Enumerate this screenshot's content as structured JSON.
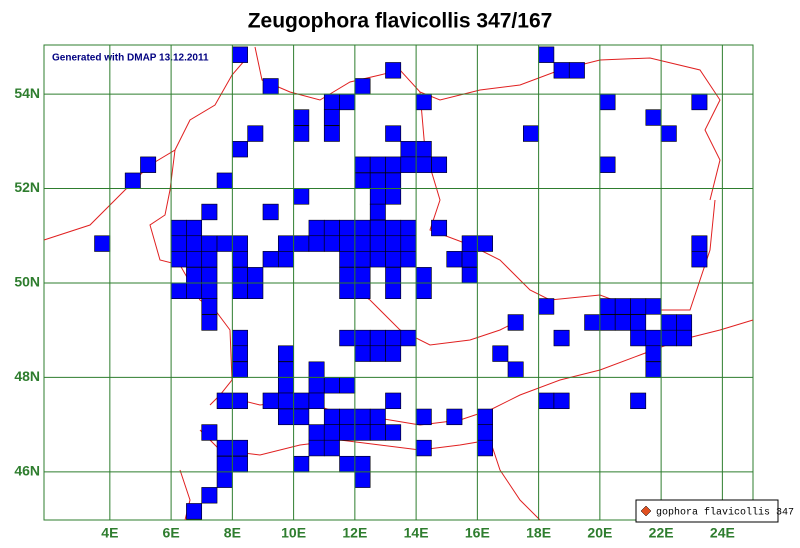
{
  "map": {
    "title": "Zeugophora flavicollis 347/167",
    "note": "Generated with DMAP 13.12.2011",
    "legend": "gophora flavicollis 347",
    "color": "#0000ff",
    "xlim": [
      1.85,
      25
    ],
    "ylim": [
      44.98,
      55.04
    ],
    "cell_size": [
      0.5,
      0.333
    ],
    "xticks": [
      {
        "value": 4,
        "label": "4E"
      },
      {
        "value": 6,
        "label": "6E"
      },
      {
        "value": 8,
        "label": "8E"
      },
      {
        "value": 10,
        "label": "10E"
      },
      {
        "value": 12,
        "label": "12E"
      },
      {
        "value": 14,
        "label": "14E"
      },
      {
        "value": 16,
        "label": "16E"
      },
      {
        "value": 18,
        "label": "18E"
      },
      {
        "value": 20,
        "label": "20E"
      },
      {
        "value": 22,
        "label": "22E"
      },
      {
        "value": 24,
        "label": "24E"
      }
    ],
    "yticks": [
      {
        "value": 54,
        "label": "54N"
      },
      {
        "value": 52,
        "label": "52N"
      },
      {
        "value": 50,
        "label": "50N"
      },
      {
        "value": 48,
        "label": "48N"
      },
      {
        "value": 46,
        "label": "46N"
      }
    ],
    "cells": [
      [
        8,
        55
      ],
      [
        18,
        55
      ],
      [
        13,
        54.67
      ],
      [
        18.5,
        54.67
      ],
      [
        19,
        54.67
      ],
      [
        9,
        54.33
      ],
      [
        12,
        54.33
      ],
      [
        14,
        54
      ],
      [
        20,
        54
      ],
      [
        23,
        54
      ],
      [
        11,
        54
      ],
      [
        11.5,
        54
      ],
      [
        10,
        53.67
      ],
      [
        11,
        53.67
      ],
      [
        21.5,
        53.67
      ],
      [
        8.5,
        53.33
      ],
      [
        10,
        53.33
      ],
      [
        11,
        53.33
      ],
      [
        13,
        53.33
      ],
      [
        17.5,
        53.33
      ],
      [
        22,
        53.33
      ],
      [
        8,
        53
      ],
      [
        13.5,
        53
      ],
      [
        14,
        53
      ],
      [
        14.5,
        52.67
      ],
      [
        12,
        52.67
      ],
      [
        12.5,
        52.67
      ],
      [
        13,
        52.67
      ],
      [
        13.5,
        52.67
      ],
      [
        14,
        52.67
      ],
      [
        20,
        52.67
      ],
      [
        5,
        52.67
      ],
      [
        4.5,
        52.33
      ],
      [
        7.5,
        52.33
      ],
      [
        12,
        52.33
      ],
      [
        12.5,
        52.33
      ],
      [
        13,
        52.33
      ],
      [
        10,
        52
      ],
      [
        12.5,
        52
      ],
      [
        13,
        52
      ],
      [
        7,
        51.67
      ],
      [
        9,
        51.67
      ],
      [
        12.5,
        51.67
      ],
      [
        6,
        51.33
      ],
      [
        6.5,
        51.33
      ],
      [
        10.5,
        51.33
      ],
      [
        11,
        51.33
      ],
      [
        11.5,
        51.33
      ],
      [
        12,
        51.33
      ],
      [
        12.5,
        51.33
      ],
      [
        13,
        51.33
      ],
      [
        13.5,
        51.33
      ],
      [
        14.5,
        51.33
      ],
      [
        6,
        51
      ],
      [
        6.5,
        51
      ],
      [
        7,
        51
      ],
      [
        7.5,
        51
      ],
      [
        8,
        51
      ],
      [
        9.5,
        51
      ],
      [
        10,
        51
      ],
      [
        10.5,
        51
      ],
      [
        11,
        51
      ],
      [
        11.5,
        51
      ],
      [
        12,
        51
      ],
      [
        12.5,
        51
      ],
      [
        13,
        51
      ],
      [
        13.5,
        51
      ],
      [
        15.5,
        51
      ],
      [
        16,
        51
      ],
      [
        23,
        51
      ],
      [
        3.5,
        51
      ],
      [
        6,
        50.67
      ],
      [
        6.5,
        50.67
      ],
      [
        7,
        50.67
      ],
      [
        8,
        50.67
      ],
      [
        9,
        50.67
      ],
      [
        9.5,
        50.67
      ],
      [
        11.5,
        50.67
      ],
      [
        12,
        50.67
      ],
      [
        12.5,
        50.67
      ],
      [
        13,
        50.67
      ],
      [
        13.5,
        50.67
      ],
      [
        15,
        50.67
      ],
      [
        15.5,
        50.67
      ],
      [
        23,
        50.67
      ],
      [
        6.5,
        50.33
      ],
      [
        7,
        50.33
      ],
      [
        8,
        50.33
      ],
      [
        8.5,
        50.33
      ],
      [
        11.5,
        50.33
      ],
      [
        12,
        50.33
      ],
      [
        13,
        50.33
      ],
      [
        14,
        50.33
      ],
      [
        15.5,
        50.33
      ],
      [
        6,
        50
      ],
      [
        6.5,
        50
      ],
      [
        7,
        50
      ],
      [
        8,
        50
      ],
      [
        8.5,
        50
      ],
      [
        11.5,
        50
      ],
      [
        12,
        50
      ],
      [
        13,
        50
      ],
      [
        14,
        50
      ],
      [
        7,
        49.67
      ],
      [
        18,
        49.67
      ],
      [
        20,
        49.67
      ],
      [
        20.5,
        49.67
      ],
      [
        21,
        49.67
      ],
      [
        21.5,
        49.67
      ],
      [
        7,
        49.33
      ],
      [
        17,
        49.33
      ],
      [
        19.5,
        49.33
      ],
      [
        20,
        49.33
      ],
      [
        20.5,
        49.33
      ],
      [
        21,
        49.33
      ],
      [
        22,
        49.33
      ],
      [
        22.5,
        49.33
      ],
      [
        8,
        49
      ],
      [
        11.5,
        49
      ],
      [
        12,
        49
      ],
      [
        12.5,
        49
      ],
      [
        13,
        49
      ],
      [
        13.5,
        49
      ],
      [
        18.5,
        49
      ],
      [
        21,
        49
      ],
      [
        21.5,
        49
      ],
      [
        22,
        49
      ],
      [
        22.5,
        49
      ],
      [
        8,
        48.67
      ],
      [
        9.5,
        48.67
      ],
      [
        12,
        48.67
      ],
      [
        12.5,
        48.67
      ],
      [
        13,
        48.67
      ],
      [
        16.5,
        48.67
      ],
      [
        21.5,
        48.67
      ],
      [
        8,
        48.33
      ],
      [
        9.5,
        48.33
      ],
      [
        10.5,
        48.33
      ],
      [
        17,
        48.33
      ],
      [
        21.5,
        48.33
      ],
      [
        9.5,
        48
      ],
      [
        10.5,
        48
      ],
      [
        11,
        48
      ],
      [
        11.5,
        48
      ],
      [
        7.5,
        47.67
      ],
      [
        8,
        47.67
      ],
      [
        9,
        47.67
      ],
      [
        9.5,
        47.67
      ],
      [
        10,
        47.67
      ],
      [
        10.5,
        47.67
      ],
      [
        13,
        47.67
      ],
      [
        18,
        47.67
      ],
      [
        18.5,
        47.67
      ],
      [
        21,
        47.67
      ],
      [
        9.5,
        47.33
      ],
      [
        10,
        47.33
      ],
      [
        11,
        47.33
      ],
      [
        11.5,
        47.33
      ],
      [
        12,
        47.33
      ],
      [
        12.5,
        47.33
      ],
      [
        14,
        47.33
      ],
      [
        15,
        47.33
      ],
      [
        16,
        47.33
      ],
      [
        7,
        47
      ],
      [
        10.5,
        47
      ],
      [
        11,
        47
      ],
      [
        11.5,
        47
      ],
      [
        12,
        47
      ],
      [
        12.5,
        47
      ],
      [
        13,
        47
      ],
      [
        16,
        47
      ],
      [
        7.5,
        46.67
      ],
      [
        8,
        46.67
      ],
      [
        10.5,
        46.67
      ],
      [
        11,
        46.67
      ],
      [
        14,
        46.67
      ],
      [
        16,
        46.67
      ],
      [
        7.5,
        46.33
      ],
      [
        8,
        46.33
      ],
      [
        10,
        46.33
      ],
      [
        11.5,
        46.33
      ],
      [
        12,
        46.33
      ],
      [
        7.5,
        46
      ],
      [
        12,
        46
      ],
      [
        7,
        45.67
      ],
      [
        6.5,
        45.33
      ]
    ]
  }
}
